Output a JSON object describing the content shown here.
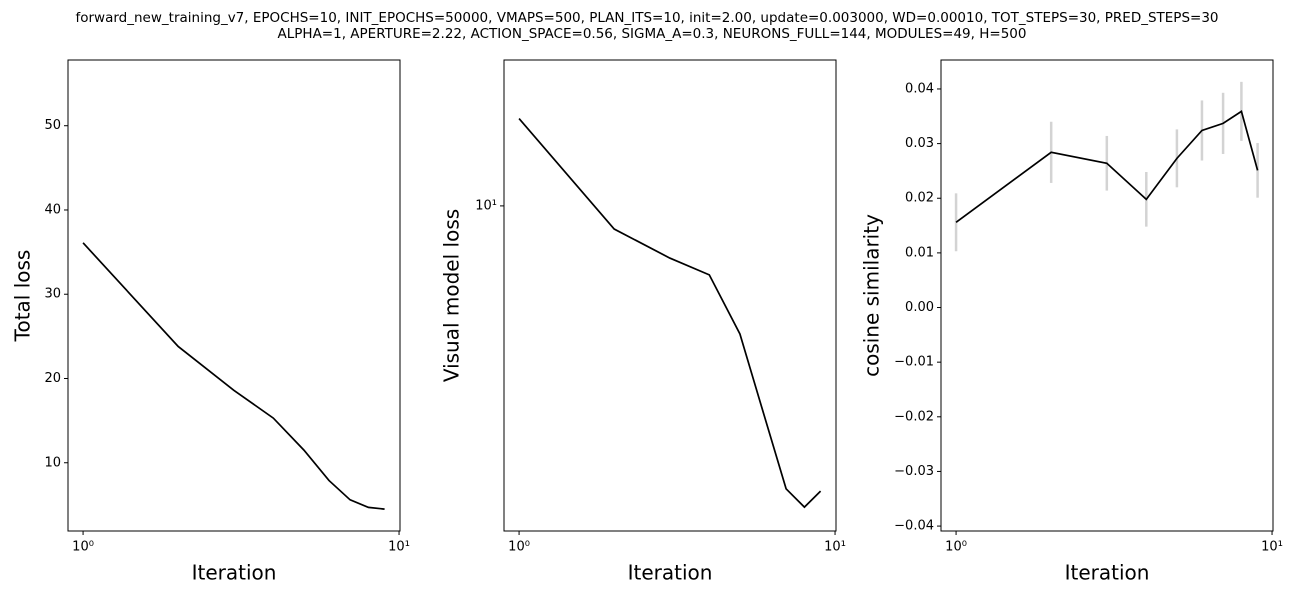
{
  "figure_title": [
    "forward_new_training_v7, EPOCHS=10, INIT_EPOCHS=50000, VMAPS=500, PLAN_ITS=10, init=2.00, update=0.003000, WD=0.00010, TOT_STEPS=30, PRED_STEPS=30",
    "ALPHA=1, APERTURE=2.22, ACTION_SPACE=0.56, SIGMA_A=0.3, NEURONS_FULL=144, MODULES=49, H=500"
  ],
  "chart_data": [
    {
      "type": "line",
      "xlabel": "Iteration",
      "ylabel": "Total loss",
      "xlog": true,
      "x": [
        1,
        2,
        3,
        4,
        5,
        6,
        7,
        8,
        9
      ],
      "series": [
        {
          "color": "#000000",
          "values": [
            36.1,
            23.8,
            18.6,
            15.3,
            11.5,
            7.9,
            5.6,
            4.7,
            4.5
          ]
        }
      ],
      "xlim": [
        0.896,
        10.07
      ],
      "xticks": [
        {
          "value": 1,
          "label": "10⁰"
        },
        {
          "value": 10,
          "label": "10¹"
        }
      ],
      "ylim": [
        1.9,
        57.8
      ],
      "yticks": [
        10,
        20,
        30,
        40,
        50
      ]
    },
    {
      "type": "line",
      "xlabel": "Iteration",
      "ylabel": "Visual model loss",
      "xlog": true,
      "ylog": true,
      "x": [
        1,
        2,
        3,
        4,
        5,
        6,
        7,
        8,
        9
      ],
      "series": [
        {
          "color": "#000000",
          "values": [
            13.1,
            9.31,
            8.51,
            8.08,
            6.73,
            5.19,
            4.17,
            3.94,
            4.14
          ]
        }
      ],
      "xlim": [
        0.896,
        10.07
      ],
      "xticks": [
        {
          "value": 1,
          "label": "10⁰"
        },
        {
          "value": 10,
          "label": "10¹"
        }
      ],
      "ylim": [
        3.66,
        15.7
      ],
      "yticks": [
        {
          "value": 10,
          "label": "10¹"
        }
      ]
    },
    {
      "type": "errorline",
      "xlabel": "Iteration",
      "ylabel": "cosine similarity",
      "xlog": true,
      "x": [
        1,
        2,
        3,
        4,
        5,
        6,
        7,
        8,
        9
      ],
      "series": [
        {
          "color": "#000000",
          "error_color": "#d3d3d3",
          "values": [
            0.0156,
            0.0284,
            0.0264,
            0.0198,
            0.0273,
            0.0324,
            0.0337,
            0.0359,
            0.0251
          ],
          "errors": [
            0.0053,
            0.0056,
            0.005,
            0.005,
            0.0053,
            0.0055,
            0.0056,
            0.0054,
            0.005
          ]
        }
      ],
      "xlim": [
        0.896,
        10.07
      ],
      "xticks": [
        {
          "value": 1,
          "label": "10⁰"
        },
        {
          "value": 10,
          "label": "10¹"
        }
      ],
      "ylim": [
        -0.0409,
        0.0453
      ],
      "yticks": [
        {
          "value": -0.04,
          "label": "−0.04"
        },
        {
          "value": -0.03,
          "label": "−0.03"
        },
        {
          "value": -0.02,
          "label": "−0.02"
        },
        {
          "value": -0.01,
          "label": "−0.01"
        },
        {
          "value": 0,
          "label": "0.00"
        },
        {
          "value": 0.01,
          "label": "0.01"
        },
        {
          "value": 0.02,
          "label": "0.02"
        },
        {
          "value": 0.03,
          "label": "0.03"
        },
        {
          "value": 0.04,
          "label": "0.04"
        }
      ]
    }
  ]
}
